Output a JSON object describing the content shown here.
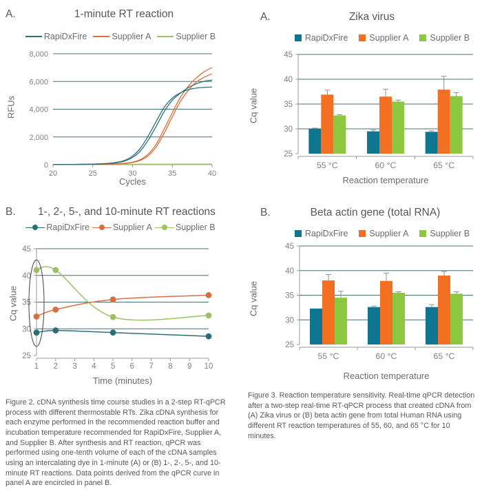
{
  "palette": {
    "bar": {
      "teal": "#0f7692",
      "orange": "#f36f21",
      "green": "#8dc63f"
    },
    "line": {
      "teal": "#2a6f78",
      "orange": "#d96f3d",
      "green": "#9cc065"
    },
    "grid": "#446e7a",
    "axis": "#98999c",
    "tick_text": "#808184",
    "axis_label": "#6b6c6f",
    "title": "#555659",
    "caption": "#57585b",
    "error": "#8d9194",
    "ellipse": "#3e4043"
  },
  "panels": {
    "letters": {
      "top_left": "A.",
      "top_right": "A.",
      "bottom_left": "B.",
      "bottom_right": "B."
    }
  },
  "chart_data": [
    {
      "id": "amp",
      "type": "line",
      "title": "1-minute RT reaction",
      "xlabel": "Cycles",
      "ylabel": "RFUs",
      "xlim": [
        20,
        40
      ],
      "ylim": [
        0,
        8000
      ],
      "xticks": [
        20,
        25,
        30,
        35,
        40
      ],
      "yticks": [
        0,
        2000,
        4000,
        6000,
        8000
      ],
      "ytick_labels": [
        "0",
        "2,000",
        "4,000",
        "6,000",
        "8,000"
      ],
      "grid": "horizontal",
      "legend_position": "top",
      "legend": [
        {
          "label": "RapiDxFire",
          "color": "teal"
        },
        {
          "label": "Supplier A",
          "color": "orange"
        },
        {
          "label": "Supplier B",
          "color": "green"
        }
      ],
      "series": [
        {
          "name": "Supplier B",
          "color": "green",
          "points": [
            [
              20,
              20
            ],
            [
              22,
              22
            ],
            [
              24,
              25
            ],
            [
              26,
              28
            ],
            [
              28,
              30
            ],
            [
              30,
              32
            ],
            [
              32,
              34
            ],
            [
              34,
              36
            ],
            [
              36,
              38
            ],
            [
              38,
              40
            ],
            [
              40,
              42
            ]
          ]
        },
        {
          "name": "Supplier A replicate 1",
          "color": "orange",
          "points": [
            [
              20,
              8
            ],
            [
              22,
              10
            ],
            [
              24,
              14
            ],
            [
              25,
              18
            ],
            [
              26,
              25
            ],
            [
              27,
              38
            ],
            [
              28,
              60
            ],
            [
              29,
              105
            ],
            [
              30,
              190
            ],
            [
              31,
              380
            ],
            [
              32,
              780
            ],
            [
              33,
              1500
            ],
            [
              34,
              2600
            ],
            [
              35,
              3750
            ],
            [
              36,
              4850
            ],
            [
              37,
              5650
            ],
            [
              38,
              6250
            ],
            [
              39,
              6700
            ],
            [
              40,
              7000
            ]
          ]
        },
        {
          "name": "Supplier A replicate 2",
          "color": "orange",
          "points": [
            [
              20,
              8
            ],
            [
              22,
              10
            ],
            [
              24,
              14
            ],
            [
              25,
              17
            ],
            [
              26,
              23
            ],
            [
              27,
              34
            ],
            [
              28,
              52
            ],
            [
              29,
              90
            ],
            [
              30,
              160
            ],
            [
              31,
              320
            ],
            [
              32,
              660
            ],
            [
              33,
              1300
            ],
            [
              34,
              2300
            ],
            [
              35,
              3450
            ],
            [
              36,
              4550
            ],
            [
              37,
              5350
            ],
            [
              38,
              5950
            ],
            [
              39,
              6300
            ],
            [
              40,
              6550
            ]
          ]
        },
        {
          "name": "RapiDxFire replicate 1",
          "color": "teal",
          "points": [
            [
              20,
              15
            ],
            [
              22,
              18
            ],
            [
              23,
              22
            ],
            [
              24,
              28
            ],
            [
              25,
              38
            ],
            [
              26,
              55
            ],
            [
              27,
              85
            ],
            [
              28,
              140
            ],
            [
              29,
              260
            ],
            [
              30,
              520
            ],
            [
              31,
              1000
            ],
            [
              32,
              1800
            ],
            [
              33,
              2800
            ],
            [
              34,
              3850
            ],
            [
              35,
              4650
            ],
            [
              36,
              5150
            ],
            [
              37,
              5550
            ],
            [
              38,
              5830
            ],
            [
              39,
              6010
            ],
            [
              40,
              6100
            ]
          ]
        },
        {
          "name": "RapiDxFire replicate 2",
          "color": "teal",
          "points": [
            [
              20,
              15
            ],
            [
              22,
              18
            ],
            [
              23,
              24
            ],
            [
              24,
              32
            ],
            [
              25,
              45
            ],
            [
              26,
              65
            ],
            [
              27,
              100
            ],
            [
              28,
              170
            ],
            [
              29,
              310
            ],
            [
              30,
              620
            ],
            [
              31,
              1200
            ],
            [
              32,
              2100
            ],
            [
              33,
              3150
            ],
            [
              34,
              4150
            ],
            [
              35,
              4800
            ],
            [
              36,
              5180
            ],
            [
              37,
              5400
            ],
            [
              38,
              5520
            ],
            [
              39,
              5570
            ],
            [
              40,
              5600
            ]
          ]
        }
      ]
    },
    {
      "id": "zika",
      "type": "bar",
      "title": "Zika virus",
      "xlabel": "Reaction temperature",
      "ylabel": "Cq value",
      "categories": [
        "55 °C",
        "60 °C",
        "65 °C"
      ],
      "ylim": [
        25,
        45
      ],
      "yticks": [
        25,
        30,
        35,
        40,
        45
      ],
      "grid": "horizontal",
      "legend_position": "top",
      "legend": [
        {
          "label": "RapiDxFire",
          "color": "teal"
        },
        {
          "label": "Supplier A",
          "color": "orange"
        },
        {
          "label": "Supplier B",
          "color": "green"
        }
      ],
      "series": [
        {
          "name": "RapiDxFire",
          "color": "teal",
          "values": [
            30.0,
            29.5,
            29.4
          ],
          "errors": [
            0.15,
            0.25,
            0.2
          ]
        },
        {
          "name": "Supplier A",
          "color": "orange",
          "values": [
            36.9,
            36.5,
            37.9
          ],
          "errors": [
            0.9,
            1.5,
            2.7
          ]
        },
        {
          "name": "Supplier B",
          "color": "green",
          "values": [
            32.7,
            35.5,
            36.6
          ],
          "errors": [
            0.15,
            0.3,
            0.7
          ]
        }
      ]
    },
    {
      "id": "timecourse",
      "type": "line",
      "title": "1-, 2-, 5-, and 10-minute RT reactions",
      "xlabel": "Time (minutes)",
      "ylabel": "Cq value",
      "x": [
        1,
        2,
        5,
        10
      ],
      "xlim": [
        1,
        10
      ],
      "ylim": [
        25,
        45
      ],
      "xticks": [
        1,
        2,
        3,
        4,
        5,
        6,
        7,
        8,
        9,
        10
      ],
      "yticks": [
        25,
        30,
        35,
        40,
        45
      ],
      "grid": "horizontal",
      "legend_position": "top",
      "legend": [
        {
          "label": "RapiDxFire",
          "color": "teal"
        },
        {
          "label": "Supplier A",
          "color": "orange"
        },
        {
          "label": "Supplier B",
          "color": "green"
        }
      ],
      "series": [
        {
          "name": "RapiDxFire",
          "color": "teal",
          "values": [
            29.3,
            29.7,
            29.3,
            28.6
          ]
        },
        {
          "name": "Supplier A",
          "color": "orange",
          "values": [
            32.3,
            33.6,
            35.5,
            36.3
          ]
        },
        {
          "name": "Supplier B",
          "color": "green",
          "values": [
            41.0,
            41.0,
            32.2,
            32.5
          ]
        }
      ],
      "annotation": {
        "type": "ellipse",
        "x": 1,
        "y_range": [
          26.7,
          42.9
        ],
        "note": "1-minute data points (derived from qPCR curve in panel A) encircled"
      }
    },
    {
      "id": "beta",
      "type": "bar",
      "title": "Beta actin gene (total RNA)",
      "xlabel": "Reaction temperature",
      "ylabel": "Cq value",
      "categories": [
        "55 °C",
        "60 °C",
        "65 °C"
      ],
      "ylim": [
        25,
        45
      ],
      "yticks": [
        25,
        30,
        35,
        40,
        45
      ],
      "grid": "horizontal",
      "legend_position": "top",
      "legend": [
        {
          "label": "RapiDxFire",
          "color": "teal"
        },
        {
          "label": "Supplier A",
          "color": "orange"
        },
        {
          "label": "Supplier B",
          "color": "green"
        }
      ],
      "series": [
        {
          "name": "RapiDxFire",
          "color": "teal",
          "values": [
            32.3,
            32.6,
            32.6
          ],
          "errors": [
            0.0,
            0.2,
            0.5
          ]
        },
        {
          "name": "Supplier A",
          "color": "orange",
          "values": [
            38.0,
            37.9,
            39.0
          ],
          "errors": [
            1.2,
            1.6,
            0.8
          ]
        },
        {
          "name": "Supplier B",
          "color": "green",
          "values": [
            34.5,
            35.5,
            35.3
          ],
          "errors": [
            1.3,
            0.2,
            0.4
          ]
        }
      ]
    }
  ],
  "captions": {
    "figure2": "Figure 2. cDNA synthesis time course studies in a 2-step RT-qPCR process with different thermostable RTs. Zika cDNA synthesis for each enzyme performed in the recommended reaction buffer and incubation temperature recommended for RapiDxFire, Supplier A, and Supplier B. After synthesis and RT reaction, qPCR was performed using one-tenth volume of each of the cDNA samples using an intercalating dye in 1-minute (A) or (B) 1-, 2-, 5-, and 10-minute RT reactions. Data points derived from the qPCR curve in panel A are encircled in panel B.",
    "figure3": "Figure 3. Reaction temperature sensitivity. Real-time qPCR detection after a two-step real-time RT-qPCR process that created cDNA from (A) Zika virus or (B) beta actin gene from total Human RNA using different RT reaction temperatures of 55, 60, and 65 °C for 10 minutes."
  }
}
